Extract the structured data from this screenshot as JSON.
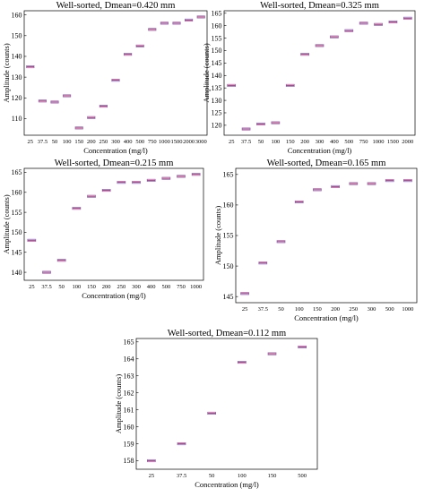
{
  "chart_data": [
    {
      "type": "box",
      "title": "Well-sorted, Dmean=0.420 mm",
      "xlabel": "Concentration (mg/l)",
      "ylabel": "Amplitude (counts)",
      "categories": [
        "25",
        "37.5",
        "50",
        "100",
        "150",
        "200",
        "250",
        "300",
        "400",
        "500",
        "750",
        "1000",
        "1500",
        "2000",
        "3000"
      ],
      "values": [
        135,
        118.5,
        118,
        121,
        105.5,
        110.5,
        116,
        128.5,
        141,
        145,
        153,
        156,
        156,
        157.5,
        159
      ],
      "ylim": [
        102,
        162
      ],
      "yticks": [
        110,
        120,
        130,
        140,
        150,
        160
      ],
      "grid": false
    },
    {
      "type": "box",
      "title": "Well-sorted, Dmean=0.325 mm",
      "xlabel": "Concentration (mg/l)",
      "ylabel": "Amplitude (counts)",
      "categories": [
        "25",
        "37.5",
        "50",
        "100",
        "150",
        "200",
        "300",
        "400",
        "500",
        "750",
        "1000",
        "1500",
        "2000"
      ],
      "values": [
        136,
        118.5,
        120.5,
        121,
        136,
        148.5,
        152,
        155.5,
        158,
        161,
        160.5,
        161.5,
        163
      ],
      "ylim": [
        116,
        166
      ],
      "yticks": [
        120,
        125,
        130,
        135,
        140,
        145,
        150,
        155,
        160,
        165
      ],
      "grid": false
    },
    {
      "type": "box",
      "title": "Well-sorted, Dmean=0.215 mm",
      "xlabel": "Concentration (mg/l)",
      "ylabel": "Amplitude (counts)",
      "categories": [
        "25",
        "37.5",
        "50",
        "100",
        "150",
        "200",
        "250",
        "300",
        "400",
        "500",
        "750",
        "1000"
      ],
      "values": [
        148,
        140,
        143,
        156,
        159,
        160.5,
        162.5,
        162.5,
        163,
        163.5,
        164,
        164.5
      ],
      "ylim": [
        138,
        166
      ],
      "yticks": [
        140,
        145,
        150,
        155,
        160,
        165
      ],
      "grid": false
    },
    {
      "type": "box",
      "title": "Well-sorted, Dmean=0.165 mm",
      "xlabel": "Concentration (mg/l)",
      "ylabel": "Amplitude (counts)",
      "categories": [
        "25",
        "37.5",
        "50",
        "100",
        "150",
        "200",
        "250",
        "300",
        "500",
        "1000"
      ],
      "values": [
        145.5,
        150.5,
        154,
        160.5,
        162.5,
        163,
        163.5,
        163.5,
        164,
        164
      ],
      "ylim": [
        144,
        166
      ],
      "yticks": [
        145,
        150,
        155,
        160,
        165
      ],
      "grid": false
    },
    {
      "type": "box",
      "title": "Well-sorted, Dmean=0.112 mm",
      "xlabel": "Concentration (mg/l)",
      "ylabel": "Amplitude (counts)",
      "categories": [
        "25",
        "37.5",
        "50",
        "100",
        "150",
        "500"
      ],
      "values": [
        158,
        159,
        160.8,
        163.8,
        164.3,
        164.7
      ],
      "ylim": [
        157.5,
        165.2
      ],
      "yticks": [
        158,
        159,
        160,
        161,
        162,
        163,
        164,
        165
      ],
      "grid": false
    }
  ]
}
